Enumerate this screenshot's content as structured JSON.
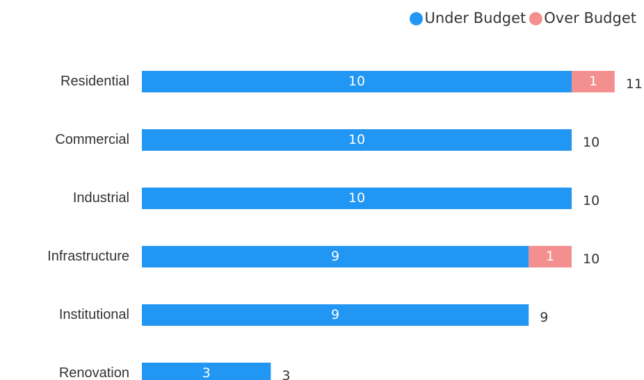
{
  "chart_data": {
    "type": "bar",
    "orientation": "horizontal",
    "stacked": true,
    "categories": [
      "Residential",
      "Commercial",
      "Industrial",
      "Infrastructure",
      "Institutional",
      "Renovation"
    ],
    "series": [
      {
        "name": "Under Budget",
        "color": "#2196f3",
        "values": [
          10,
          10,
          10,
          9,
          9,
          3
        ]
      },
      {
        "name": "Over Budget",
        "color": "#f48f8f",
        "values": [
          1,
          0,
          0,
          1,
          0,
          0
        ]
      }
    ],
    "totals": [
      11,
      10,
      10,
      10,
      9,
      3
    ],
    "xlim": [
      0,
      11
    ],
    "grid": false,
    "legend_position": "top-right",
    "title": "",
    "xlabel": "",
    "ylabel": ""
  }
}
